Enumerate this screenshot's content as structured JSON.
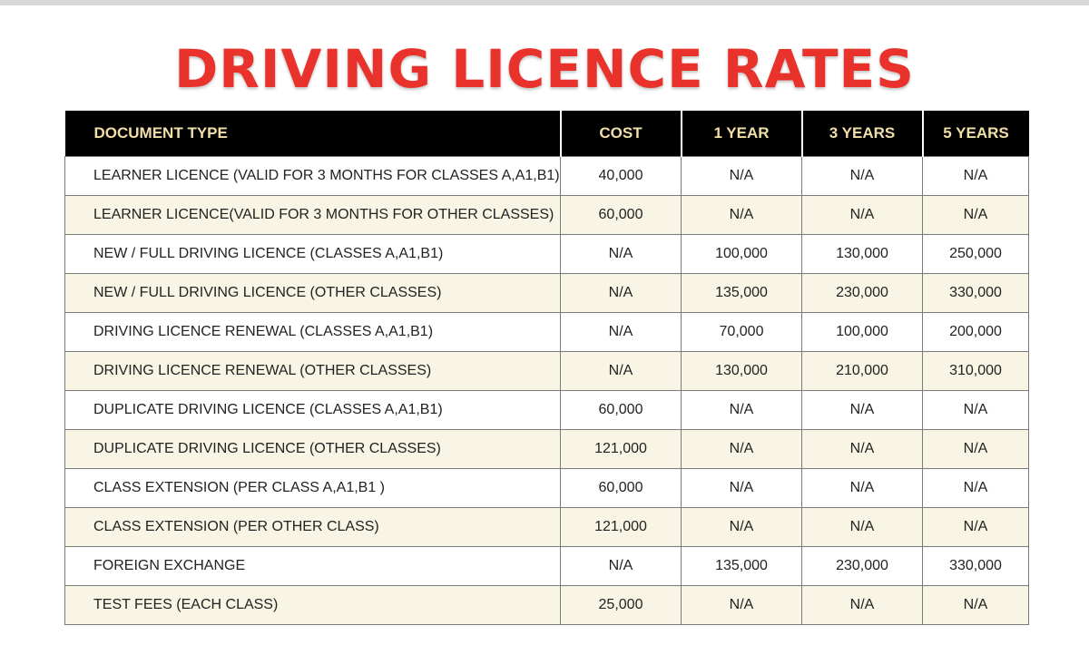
{
  "title": "DRIVING LICENCE RATES",
  "table": {
    "headers": [
      "DOCUMENT TYPE",
      "COST",
      "1 YEAR",
      "3 YEARS",
      "5 YEARS"
    ],
    "rows": [
      [
        "LEARNER LICENCE (VALID FOR 3 MONTHS FOR CLASSES A,A1,B1)",
        "40,000",
        "N/A",
        "N/A",
        "N/A"
      ],
      [
        "LEARNER LICENCE(VALID FOR 3 MONTHS FOR OTHER CLASSES)",
        "60,000",
        "N/A",
        "N/A",
        "N/A"
      ],
      [
        "NEW / FULL DRIVING LICENCE (CLASSES A,A1,B1)",
        "N/A",
        "100,000",
        "130,000",
        "250,000"
      ],
      [
        "NEW / FULL DRIVING LICENCE (OTHER CLASSES)",
        "N/A",
        "135,000",
        "230,000",
        "330,000"
      ],
      [
        "DRIVING LICENCE RENEWAL (CLASSES A,A1,B1)",
        "N/A",
        "70,000",
        "100,000",
        "200,000"
      ],
      [
        "DRIVING LICENCE RENEWAL (OTHER CLASSES)",
        "N/A",
        "130,000",
        "210,000",
        "310,000"
      ],
      [
        "DUPLICATE DRIVING LICENCE (CLASSES A,A1,B1)",
        "60,000",
        "N/A",
        "N/A",
        "N/A"
      ],
      [
        "DUPLICATE DRIVING LICENCE (OTHER CLASSES)",
        "121,000",
        "N/A",
        "N/A",
        "N/A"
      ],
      [
        "CLASS EXTENSION (PER CLASS A,A1,B1 )",
        "60,000",
        "N/A",
        "N/A",
        "N/A"
      ],
      [
        "CLASS EXTENSION (PER OTHER CLASS)",
        "121,000",
        "N/A",
        "N/A",
        "N/A"
      ],
      [
        "FOREIGN EXCHANGE",
        "N/A",
        "135,000",
        "230,000",
        "330,000"
      ],
      [
        "TEST FEES (EACH CLASS)",
        "25,000",
        "N/A",
        "N/A",
        "N/A"
      ]
    ]
  },
  "colors": {
    "title": "#e8322b",
    "header_bg": "#000000",
    "header_text": "#f2dfa8",
    "row_alt": "#f8f5e4"
  }
}
